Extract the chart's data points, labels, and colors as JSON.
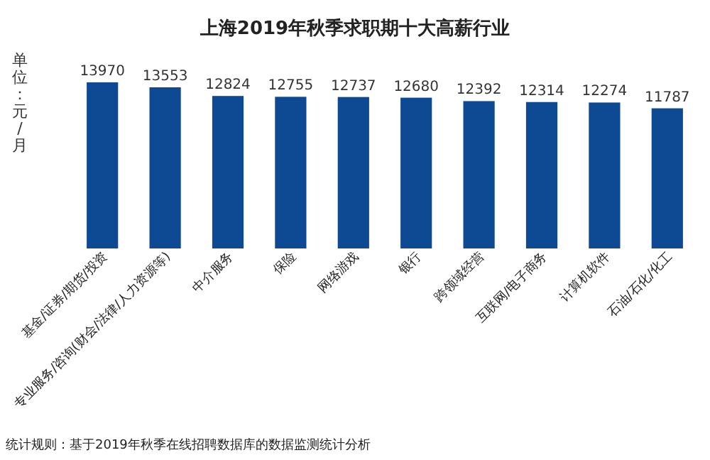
{
  "chart_data": {
    "type": "bar",
    "title": "上海2019年秋季求职期十大高薪行业",
    "ylabel": "单位：元/月",
    "categories": [
      "基金/证券/期货/投资",
      "专业服务/咨询(财会/法律/人力资源等)",
      "中介服务",
      "保险",
      "网络游戏",
      "银行",
      "跨领域经营",
      "互联网/电子商务",
      "计算机软件",
      "石油/石化/化工"
    ],
    "values": [
      13970,
      13553,
      12824,
      12755,
      12737,
      12680,
      12392,
      12314,
      12274,
      11787
    ],
    "color": "#0e4a94",
    "data_labels": true,
    "tick_labels": "x",
    "annotations": [
      "统计规则：基于2019年秋季在线招聘数据库的数据监测统计分析"
    ]
  }
}
